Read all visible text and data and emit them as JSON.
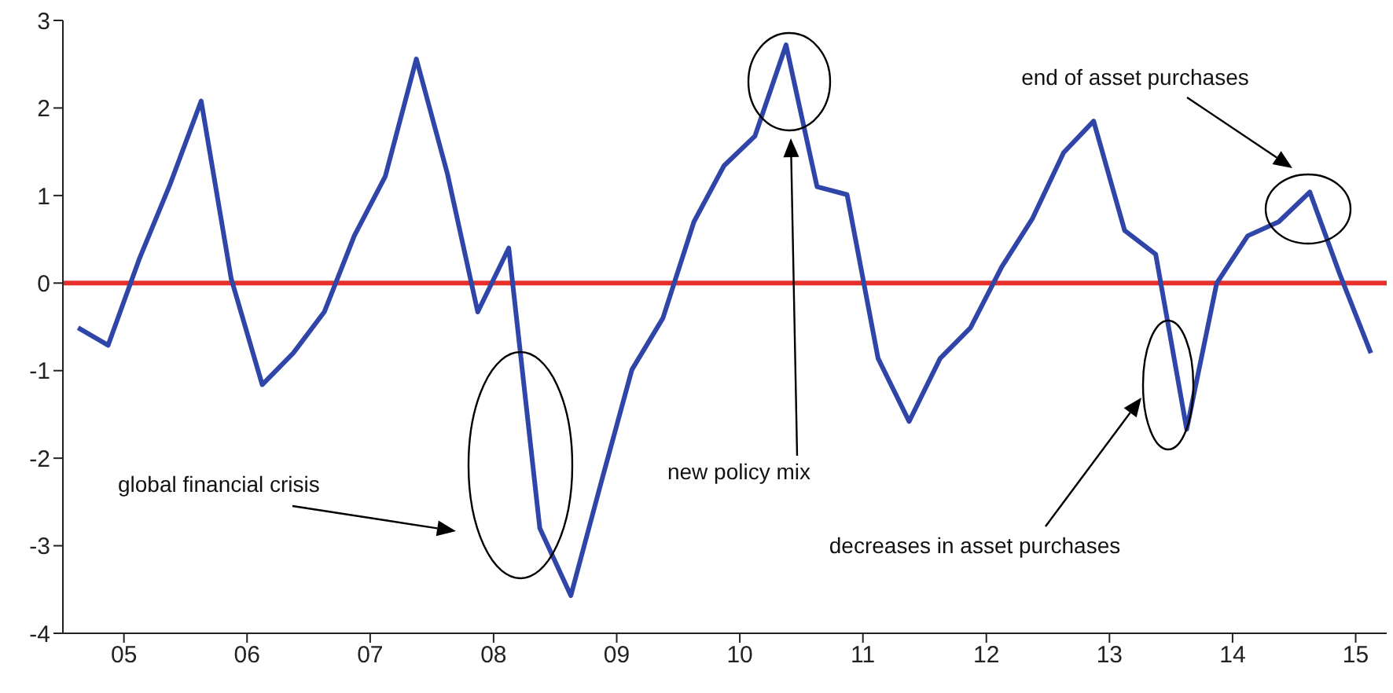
{
  "chart_data": {
    "type": "line",
    "x": [
      "2005-02-15",
      "2005-05-15",
      "2005-08-15",
      "2005-11-15",
      "2006-02-15",
      "2006-05-15",
      "2006-08-15",
      "2006-11-15",
      "2007-02-15",
      "2007-05-15",
      "2007-08-15",
      "2007-11-15",
      "2008-02-15",
      "2008-05-15",
      "2008-08-15",
      "2008-11-15",
      "2009-02-15",
      "2009-05-15",
      "2009-08-15",
      "2009-11-15",
      "2010-02-15",
      "2010-05-15",
      "2010-08-15",
      "2010-11-15",
      "2011-02-15",
      "2011-05-15",
      "2011-08-15",
      "2011-11-15",
      "2012-02-15",
      "2012-05-15",
      "2012-08-15",
      "2012-11-15",
      "2013-02-15",
      "2013-05-15",
      "2013-08-15",
      "2013-11-15",
      "2014-02-15",
      "2014-05-15",
      "2014-08-15",
      "2014-11-15",
      "2015-02-15",
      "2015-05-15",
      "2015-08-15"
    ],
    "series": [
      {
        "color": "#2f45a8",
        "values": [
          -0.51,
          -0.71,
          0.27,
          1.13,
          2.08,
          0.05,
          -1.16,
          -0.8,
          -0.33,
          0.54,
          1.22,
          2.56,
          1.25,
          -0.33,
          0.4,
          -2.8,
          -3.57,
          -2.29,
          -0.99,
          -0.4,
          0.7,
          1.34,
          1.68,
          2.72,
          1.1,
          1.01,
          -0.86,
          -1.58,
          -0.86,
          -0.51,
          0.18,
          0.74,
          1.49,
          1.85,
          0.6,
          0.33,
          -1.67,
          0.0,
          0.54,
          0.7,
          1.04,
          0.1,
          -0.8
        ]
      }
    ],
    "xlim": [
      "2005-01-01",
      "2015-10-01"
    ],
    "xticks": [
      {
        "value": "2005-07-01",
        "label": "05"
      },
      {
        "value": "2006-07-01",
        "label": "06"
      },
      {
        "value": "2007-07-01",
        "label": "07"
      },
      {
        "value": "2008-07-01",
        "label": "08"
      },
      {
        "value": "2009-07-01",
        "label": "09"
      },
      {
        "value": "2010-07-01",
        "label": "10"
      },
      {
        "value": "2011-07-01",
        "label": "11"
      },
      {
        "value": "2012-07-01",
        "label": "12"
      },
      {
        "value": "2013-07-01",
        "label": "13"
      },
      {
        "value": "2014-07-01",
        "label": "14"
      },
      {
        "value": "2015-07-01",
        "label": "15"
      }
    ],
    "ylim": [
      -4,
      3
    ],
    "yticks": [
      -4,
      -3,
      -2,
      -1,
      0,
      1,
      2,
      3
    ],
    "ref_lines": [
      {
        "axis": "y",
        "value": 0,
        "color": "#e8302a"
      }
    ],
    "annotations": [
      "global financial crisis",
      "new policy mix",
      "decreases in asset purchases",
      "end of asset purchases"
    ]
  }
}
